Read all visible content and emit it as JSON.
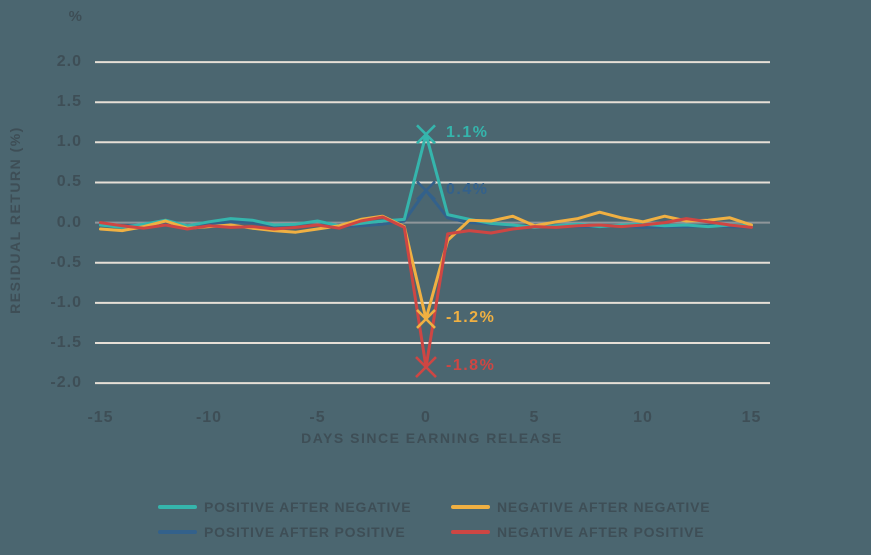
{
  "theme": {
    "background_color": "#4b6670",
    "gridline_color": "#e6dfd6",
    "zero_line_color": "#8f969a",
    "text_color": "#3e4e56"
  },
  "chart": {
    "unit_label": "%"
  },
  "chart_data": {
    "type": "line",
    "title": "",
    "xlabel": "DAYS SINCE EARNING RELEASE",
    "ylabel": "RESIDUAL RETURN (%)",
    "xlim": [
      -15,
      15
    ],
    "ylim": [
      -2.0,
      2.0
    ],
    "grid": "horizontal",
    "legend_position": "bottom",
    "xtick_labels": [
      "-15",
      "-10",
      "-5",
      "0",
      "5",
      "10",
      "15"
    ],
    "ytick_labels": [
      "2.0",
      "1.5",
      "1.0",
      "0.5",
      "0.0",
      "-0.5",
      "-1.0",
      "-1.5",
      "-2.0"
    ],
    "x": [
      -15,
      -14,
      -13,
      -12,
      -11,
      -10,
      -9,
      -8,
      -7,
      -6,
      -5,
      -4,
      -3,
      -2,
      -1,
      0,
      1,
      2,
      3,
      4,
      5,
      6,
      7,
      8,
      9,
      10,
      11,
      12,
      13,
      14,
      15
    ],
    "draw_order": [
      2,
      0,
      1,
      3
    ],
    "series": [
      {
        "id": "positive-after-negative",
        "name": "POSITIVE AFTER NEGATIVE",
        "color": "#35b5ac",
        "values": [
          -0.03,
          -0.06,
          -0.02,
          0.03,
          -0.04,
          0.01,
          0.05,
          0.03,
          -0.03,
          -0.02,
          0.02,
          -0.04,
          -0.01,
          0.02,
          0.04,
          1.1,
          0.1,
          0.04,
          -0.01,
          -0.03,
          -0.06,
          -0.04,
          -0.02,
          -0.05,
          -0.03,
          -0.02,
          -0.04,
          -0.03,
          -0.05,
          -0.03,
          -0.04
        ],
        "annotation": {
          "x": 0,
          "y": 1.1,
          "label": "1.1%",
          "marker_size": 9
        }
      },
      {
        "id": "negative-after-negative",
        "name": "NEGATIVE AFTER NEGATIVE",
        "color": "#f0b042",
        "values": [
          -0.08,
          -0.1,
          -0.05,
          0.02,
          -0.07,
          -0.05,
          -0.03,
          -0.07,
          -0.1,
          -0.12,
          -0.08,
          -0.04,
          0.04,
          0.08,
          -0.05,
          -1.2,
          -0.22,
          0.03,
          0.02,
          0.08,
          -0.04,
          0.01,
          0.05,
          0.13,
          0.06,
          0.01,
          0.08,
          0.02,
          0.03,
          0.06,
          -0.03
        ],
        "annotation": {
          "x": 0,
          "y": -1.2,
          "label": "-1.2%",
          "marker_size": 9
        }
      },
      {
        "id": "positive-after-positive",
        "name": "POSITIVE AFTER POSITIVE",
        "color": "#33618b",
        "values": [
          -0.02,
          -0.04,
          -0.03,
          0.0,
          -0.05,
          -0.02,
          0.01,
          0.0,
          -0.04,
          -0.05,
          -0.03,
          -0.05,
          -0.04,
          -0.02,
          0.02,
          0.4,
          0.06,
          0.0,
          -0.02,
          -0.04,
          -0.05,
          -0.04,
          -0.05,
          -0.05,
          -0.04,
          -0.06,
          -0.05,
          -0.05,
          -0.04,
          -0.05,
          -0.06
        ],
        "annotation": {
          "x": 0,
          "y": 0.4,
          "label": "0.4%",
          "marker_size": 9
        }
      },
      {
        "id": "negative-after-positive",
        "name": "NEGATIVE AFTER POSITIVE",
        "color": "#ce4643",
        "values": [
          0.0,
          -0.04,
          -0.07,
          -0.03,
          -0.08,
          -0.04,
          -0.06,
          -0.05,
          -0.08,
          -0.06,
          -0.03,
          -0.07,
          0.02,
          0.07,
          -0.06,
          -1.8,
          -0.14,
          -0.1,
          -0.13,
          -0.08,
          -0.05,
          -0.06,
          -0.04,
          -0.03,
          -0.05,
          -0.03,
          0.0,
          0.05,
          0.01,
          -0.03,
          -0.06
        ],
        "annotation": {
          "x": 0,
          "y": -1.8,
          "label": "-1.8%",
          "marker_size": 10
        }
      }
    ]
  }
}
